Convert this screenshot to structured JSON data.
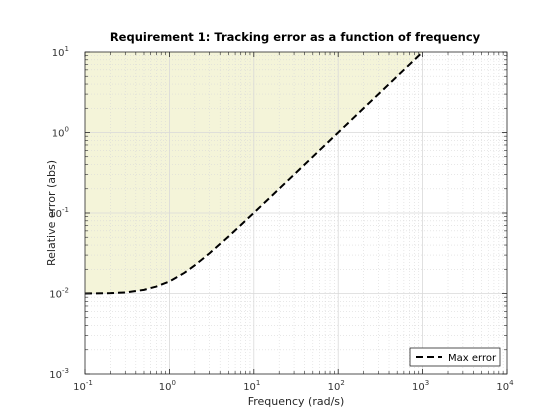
{
  "chart_data": {
    "type": "line",
    "title": "Requirement 1: Tracking error as a function of frequency",
    "xlabel": "Frequency (rad/s)",
    "ylabel": "Relative error (abs)",
    "xscale": "log",
    "yscale": "log",
    "xlim": [
      0.1,
      10000
    ],
    "ylim": [
      0.001,
      10
    ],
    "grid": true,
    "minor_grid": true,
    "legend_position": "bottom-right",
    "x_tick_labels": [
      {
        "base": "10",
        "exp": "-1"
      },
      {
        "base": "10",
        "exp": "0"
      },
      {
        "base": "10",
        "exp": "1"
      },
      {
        "base": "10",
        "exp": "2"
      },
      {
        "base": "10",
        "exp": "3"
      },
      {
        "base": "10",
        "exp": "4"
      }
    ],
    "y_tick_labels": [
      {
        "base": "10",
        "exp": "-3"
      },
      {
        "base": "10",
        "exp": "-2"
      },
      {
        "base": "10",
        "exp": "-1"
      },
      {
        "base": "10",
        "exp": "0"
      },
      {
        "base": "10",
        "exp": "1"
      }
    ],
    "series": [
      {
        "name": "Max error",
        "style": "dashed",
        "color": "#000000",
        "x": [
          0.1,
          0.2,
          0.3,
          0.5,
          0.7,
          1,
          1.5,
          2,
          3,
          5,
          7,
          10,
          20,
          30,
          50,
          70,
          100,
          200,
          300,
          500,
          700,
          1000
        ],
        "y": [
          0.01,
          0.0101,
          0.0103,
          0.0111,
          0.0122,
          0.0141,
          0.018,
          0.0224,
          0.0316,
          0.051,
          0.0707,
          0.1005,
          0.2002,
          0.3002,
          0.5001,
          0.7001,
          1.0,
          2.0,
          3.0,
          5.0,
          7.0,
          10.0
        ]
      }
    ],
    "shaded_region": {
      "description_side": "above curve",
      "color": "#f4f4d9"
    },
    "colors": {
      "axis": "#262626",
      "grid": "#d9d9d9",
      "tick_label": "#333333"
    }
  }
}
